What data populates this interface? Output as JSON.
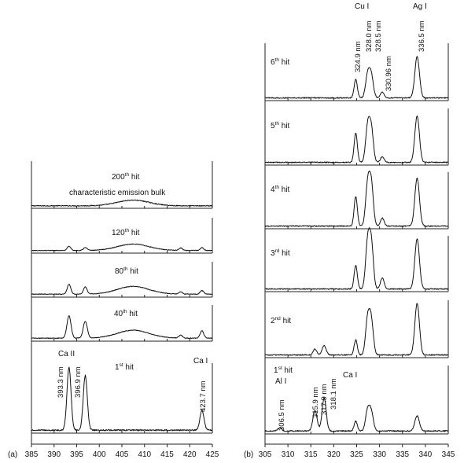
{
  "panels": [
    {
      "id": "a",
      "panel_label": "(a)",
      "x_ticks": [
        "385",
        "390",
        "395",
        "400",
        "405",
        "410",
        "415",
        "420",
        "425"
      ],
      "element_labels": [
        "Ca II",
        "Ca I"
      ],
      "peak_labels": [
        "393.3 nm",
        "396.9 nm",
        "423.7 nm"
      ],
      "subplots": [
        {
          "ordinal": "200",
          "suffix": "th",
          "word": " hit",
          "extra": "characteristic emission bulk"
        },
        {
          "ordinal": "120",
          "suffix": "th",
          "word": " hit",
          "extra": ""
        },
        {
          "ordinal": "80",
          "suffix": "th",
          "word": " hit",
          "extra": ""
        },
        {
          "ordinal": "40",
          "suffix": "th",
          "word": " hit",
          "extra": ""
        },
        {
          "ordinal": "1",
          "suffix": "st",
          "word": " hit",
          "extra": ""
        }
      ]
    },
    {
      "id": "b",
      "panel_label": "(b)",
      "x_ticks": [
        "305",
        "310",
        "315",
        "320",
        "325",
        "330",
        "335",
        "340",
        "345"
      ],
      "element_labels": [
        "Cu I",
        "Ag I",
        "Al I",
        "Ca I"
      ],
      "peak_labels": [
        "324.9 nm",
        "328.0 nm",
        "328.5 nm",
        "330.96 nm",
        "336.5 nm",
        "306.5 nm",
        "315.9 nm",
        "317.9 nm",
        "318.1 nm"
      ],
      "subplots": [
        {
          "ordinal": "6",
          "suffix": "th",
          "word": " hit"
        },
        {
          "ordinal": "5",
          "suffix": "th",
          "word": " hit"
        },
        {
          "ordinal": "4",
          "suffix": "th",
          "word": " hit"
        },
        {
          "ordinal": "3",
          "suffix": "rd",
          "word": " hit"
        },
        {
          "ordinal": "2",
          "suffix": "nd",
          "word": " hit"
        },
        {
          "ordinal": "1",
          "suffix": "st",
          "word": " hit"
        }
      ]
    }
  ],
  "chart_data": [
    {
      "type": "line",
      "panel": "a",
      "xlim": [
        385,
        425
      ],
      "grid": false,
      "series": [
        {
          "label": "200th hit",
          "baseline": 0.02,
          "peaks": [
            {
              "x": 407.5,
              "h": 0.12,
              "w": 3.5
            }
          ]
        },
        {
          "label": "120th hit",
          "baseline": 0.03,
          "peaks": [
            {
              "x": 393.3,
              "h": 0.12,
              "w": 0.4
            },
            {
              "x": 396.9,
              "h": 0.08,
              "w": 0.4
            },
            {
              "x": 407.5,
              "h": 0.18,
              "w": 3.5
            },
            {
              "x": 418.0,
              "h": 0.07,
              "w": 0.4
            },
            {
              "x": 422.7,
              "h": 0.08,
              "w": 0.4
            }
          ]
        },
        {
          "label": "80th hit",
          "baseline": 0.04,
          "peaks": [
            {
              "x": 393.3,
              "h": 0.28,
              "w": 0.4
            },
            {
              "x": 396.9,
              "h": 0.2,
              "w": 0.4
            },
            {
              "x": 407.5,
              "h": 0.22,
              "w": 3.5
            },
            {
              "x": 418.0,
              "h": 0.06,
              "w": 0.4
            },
            {
              "x": 422.7,
              "h": 0.1,
              "w": 0.4
            }
          ]
        },
        {
          "label": "40th hit",
          "baseline": 0.04,
          "peaks": [
            {
              "x": 393.3,
              "h": 0.62,
              "w": 0.45
            },
            {
              "x": 396.9,
              "h": 0.46,
              "w": 0.45
            },
            {
              "x": 407.5,
              "h": 0.22,
              "w": 3.5
            },
            {
              "x": 418.0,
              "h": 0.08,
              "w": 0.4
            },
            {
              "x": 422.7,
              "h": 0.2,
              "w": 0.4
            }
          ]
        },
        {
          "label": "1st hit",
          "baseline": 0.02,
          "peaks": [
            {
              "x": 393.3,
              "h": 0.9,
              "w": 0.45
            },
            {
              "x": 396.9,
              "h": 0.78,
              "w": 0.45
            },
            {
              "x": 422.7,
              "h": 0.28,
              "w": 0.45
            }
          ]
        }
      ]
    },
    {
      "type": "line",
      "panel": "b",
      "xlim": [
        305,
        345
      ],
      "grid": false,
      "series": [
        {
          "label": "6th hit",
          "baseline": 0.02,
          "peaks": [
            {
              "x": 324.8,
              "h": 0.32,
              "w": 0.35
            },
            {
              "x": 327.4,
              "h": 0.4,
              "w": 0.45
            },
            {
              "x": 328.2,
              "h": 0.38,
              "w": 0.45
            },
            {
              "x": 330.6,
              "h": 0.1,
              "w": 0.4
            },
            {
              "x": 338.2,
              "h": 0.72,
              "w": 0.5
            }
          ]
        },
        {
          "label": "5th hit",
          "baseline": 0.02,
          "peaks": [
            {
              "x": 324.8,
              "h": 0.52,
              "w": 0.35
            },
            {
              "x": 327.4,
              "h": 0.62,
              "w": 0.45
            },
            {
              "x": 328.2,
              "h": 0.58,
              "w": 0.45
            },
            {
              "x": 330.6,
              "h": 0.1,
              "w": 0.4
            },
            {
              "x": 338.2,
              "h": 0.82,
              "w": 0.5
            }
          ]
        },
        {
          "label": "4th hit",
          "baseline": 0.02,
          "peaks": [
            {
              "x": 324.8,
              "h": 0.52,
              "w": 0.35
            },
            {
              "x": 327.4,
              "h": 0.72,
              "w": 0.45
            },
            {
              "x": 328.2,
              "h": 0.72,
              "w": 0.45
            },
            {
              "x": 330.6,
              "h": 0.14,
              "w": 0.4
            },
            {
              "x": 338.2,
              "h": 0.85,
              "w": 0.5
            }
          ]
        },
        {
          "label": "3rd hit",
          "baseline": 0.02,
          "peaks": [
            {
              "x": 324.8,
              "h": 0.42,
              "w": 0.35
            },
            {
              "x": 327.4,
              "h": 0.82,
              "w": 0.45
            },
            {
              "x": 328.2,
              "h": 0.8,
              "w": 0.45
            },
            {
              "x": 330.6,
              "h": 0.2,
              "w": 0.4
            },
            {
              "x": 338.2,
              "h": 0.9,
              "w": 0.5
            }
          ]
        },
        {
          "label": "2nd hit",
          "baseline": 0.02,
          "peaks": [
            {
              "x": 315.9,
              "h": 0.1,
              "w": 0.4
            },
            {
              "x": 317.9,
              "h": 0.16,
              "w": 0.45
            },
            {
              "x": 324.8,
              "h": 0.26,
              "w": 0.35
            },
            {
              "x": 327.4,
              "h": 0.62,
              "w": 0.45
            },
            {
              "x": 328.2,
              "h": 0.58,
              "w": 0.45
            },
            {
              "x": 338.2,
              "h": 0.9,
              "w": 0.5
            }
          ]
        },
        {
          "label": "1st hit",
          "baseline": 0.02,
          "peaks": [
            {
              "x": 308.2,
              "h": 0.05,
              "w": 0.4
            },
            {
              "x": 315.9,
              "h": 0.3,
              "w": 0.45
            },
            {
              "x": 317.9,
              "h": 0.48,
              "w": 0.45
            },
            {
              "x": 324.8,
              "h": 0.14,
              "w": 0.35
            },
            {
              "x": 327.4,
              "h": 0.3,
              "w": 0.45
            },
            {
              "x": 328.2,
              "h": 0.26,
              "w": 0.45
            },
            {
              "x": 338.2,
              "h": 0.22,
              "w": 0.5
            }
          ]
        }
      ]
    }
  ]
}
